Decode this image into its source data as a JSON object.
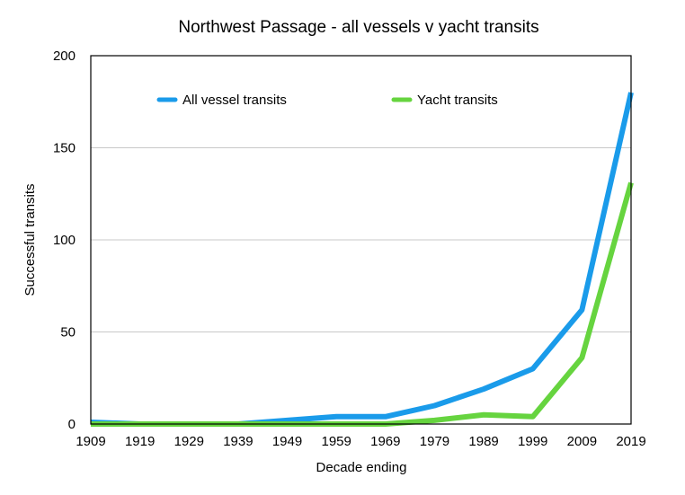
{
  "chart_data": {
    "type": "line",
    "title": "Northwest Passage - all vessels v yacht transits",
    "xlabel": "Decade ending",
    "ylabel": "Successful transits",
    "categories": [
      "1909",
      "1919",
      "1929",
      "1939",
      "1949",
      "1959",
      "1969",
      "1979",
      "1989",
      "1999",
      "2009",
      "2019"
    ],
    "ylim": [
      0,
      200
    ],
    "yticks": [
      "0",
      "50",
      "100",
      "150",
      "200"
    ],
    "grid": "horizontal",
    "legend_position": "top",
    "series": [
      {
        "name": "All vessel transits",
        "color": "#1A9BEA",
        "values": [
          1,
          0,
          0,
          0,
          2,
          4,
          4,
          10,
          19,
          30,
          62,
          180
        ]
      },
      {
        "name": "Yacht transits",
        "color": "#66D43F",
        "values": [
          0,
          0,
          0,
          0,
          0,
          0,
          0,
          2,
          5,
          4,
          36,
          131
        ]
      }
    ]
  }
}
